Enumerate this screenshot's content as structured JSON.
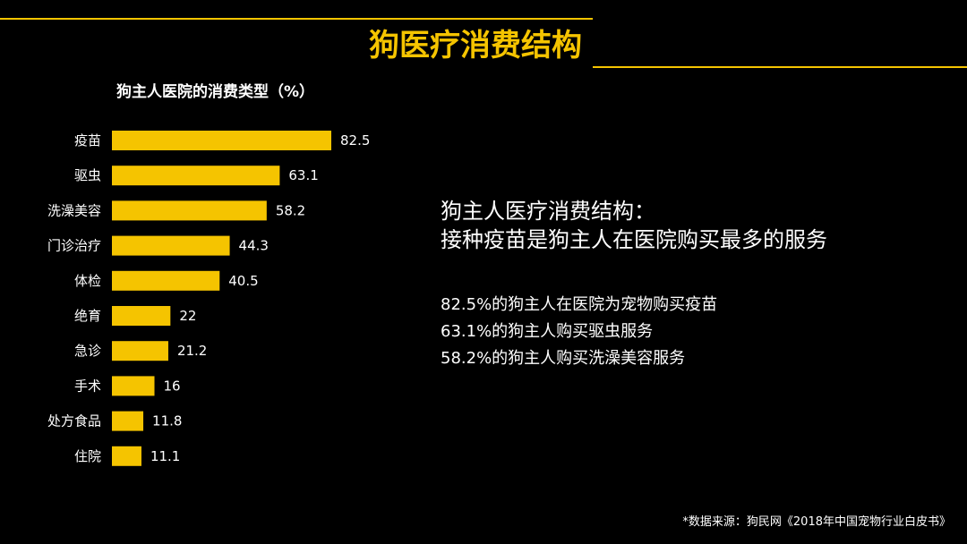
{
  "slide": {
    "title": "狗医疗消费结构",
    "accent_color": "#f5c400",
    "background_color": "#000000"
  },
  "summary": {
    "line1": "狗主人医疗消费结构：",
    "line2": "接种疫苗是狗主人在医院购买最多的服务"
  },
  "details": [
    "82.5%的狗主人在医院为宠物购买疫苗",
    "63.1%的狗主人购买驱虫服务",
    "58.2%的狗主人购买洗澡美容服务"
  ],
  "source": "*数据来源：狗民网《2018年中国宠物行业白皮书》",
  "chart_data": {
    "type": "bar",
    "orientation": "horizontal",
    "title": "狗主人医院的消费类型（%）",
    "categories": [
      "疫苗",
      "驱虫",
      "洗澡美容",
      "门诊治疗",
      "体检",
      "绝育",
      "急诊",
      "手术",
      "处方食品",
      "住院"
    ],
    "values": [
      82.5,
      63.1,
      58.2,
      44.3,
      40.5,
      22,
      21.2,
      16,
      11.8,
      11.1
    ],
    "value_labels": [
      "82.5",
      "63.1",
      "58.2",
      "44.3",
      "40.5",
      "22",
      "21.2",
      "16",
      "11.8",
      "11.1"
    ],
    "bar_color": "#f5c400",
    "xlim": [
      0,
      82.5
    ],
    "grid": false,
    "legend": false
  }
}
